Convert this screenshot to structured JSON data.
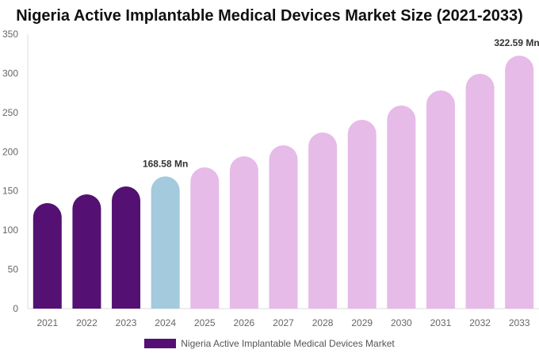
{
  "chart_data": {
    "type": "bar",
    "title": "Nigeria Active Implantable Medical Devices Market Size (2021-2033)",
    "categories": [
      "2021",
      "2022",
      "2023",
      "2024",
      "2025",
      "2026",
      "2027",
      "2028",
      "2029",
      "2030",
      "2031",
      "2032",
      "2033"
    ],
    "series": [
      {
        "name": "Nigeria Active Implantable Medical Devices Market",
        "values": [
          134.5,
          145.7,
          155.8,
          168.58,
          180.1,
          194.2,
          208.3,
          224.6,
          240.7,
          259.0,
          278.2,
          299.4,
          322.59
        ]
      }
    ],
    "data_labels": {
      "2024": "168.58 Mn",
      "2033": "322.59 Mn"
    },
    "yticks": [
      0,
      50,
      100,
      150,
      200,
      250,
      300,
      350
    ],
    "ylim": [
      0,
      350
    ],
    "xlabel": "",
    "ylabel": "",
    "grid": false,
    "legend_position": "bottom",
    "colors": {
      "historical": "#541173",
      "base_year": "#a3cadd",
      "forecast": "#e6bbe8"
    }
  }
}
